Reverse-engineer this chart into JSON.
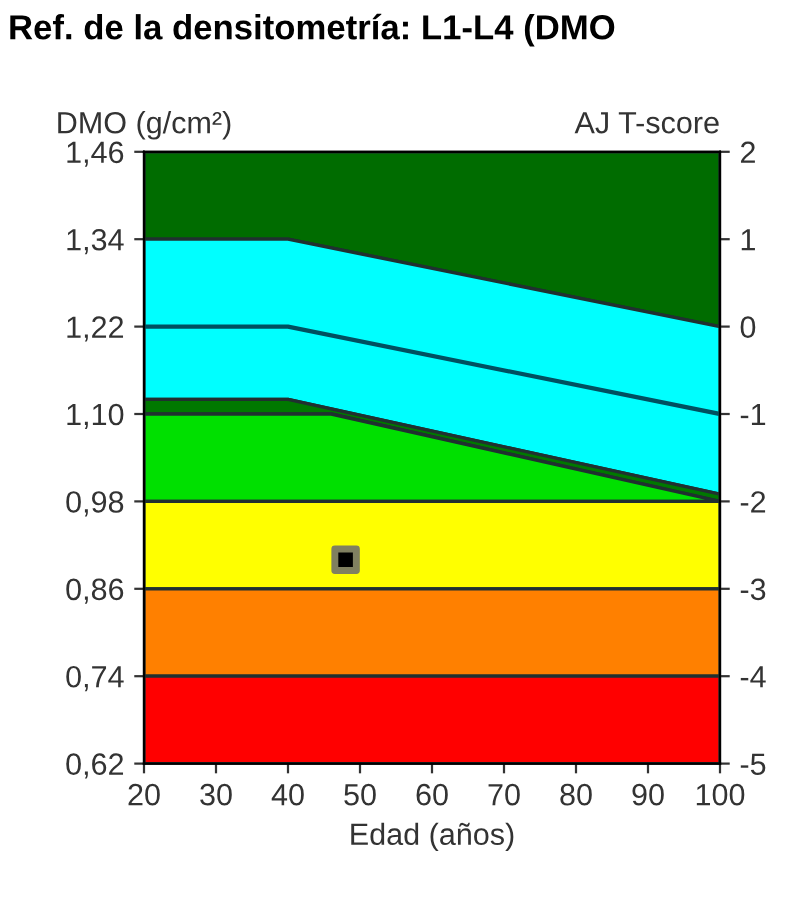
{
  "chart_data": {
    "type": "area",
    "title": "Ref. de la densitometría: L1-L4 (DMO",
    "xlabel": "Edad (años)",
    "ylabel": "DMO (g/cm²)",
    "y2label": "AJ T-score",
    "xlim": [
      20,
      100
    ],
    "xticks": [
      20,
      30,
      40,
      50,
      60,
      70,
      80,
      90,
      100
    ],
    "ylim": [
      0.62,
      1.46
    ],
    "yticks": [
      {
        "value": 0.62,
        "label": "0,62"
      },
      {
        "value": 0.74,
        "label": "0,74"
      },
      {
        "value": 0.86,
        "label": "0,86"
      },
      {
        "value": 0.98,
        "label": "0,98"
      },
      {
        "value": 1.1,
        "label": "1,10"
      },
      {
        "value": 1.22,
        "label": "1,22"
      },
      {
        "value": 1.34,
        "label": "1,34"
      },
      {
        "value": 1.46,
        "label": "1,46"
      }
    ],
    "y2lim": [
      -5,
      2
    ],
    "y2ticks": [
      -5,
      -4,
      -3,
      -2,
      -1,
      0,
      1,
      2
    ],
    "series": [
      {
        "color": "#006c00",
        "x": [
          20,
          40,
          100
        ],
        "values": [
          1.46,
          1.46,
          1.46
        ]
      },
      {
        "color": "#00ffff",
        "x": [
          20,
          40,
          100
        ],
        "values": [
          1.34,
          1.34,
          1.22
        ]
      },
      {
        "color": "#007800",
        "x": [
          20,
          40,
          100
        ],
        "values": [
          1.12,
          1.12,
          0.99
        ]
      },
      {
        "color": "#00e000",
        "x": [
          20,
          46,
          100
        ],
        "values": [
          1.1,
          1.1,
          0.98
        ]
      },
      {
        "color": "#ffff00",
        "x": [
          20,
          100
        ],
        "values": [
          0.98,
          0.98
        ]
      },
      {
        "color": "#ff8000",
        "x": [
          20,
          100
        ],
        "values": [
          0.86,
          0.86
        ]
      },
      {
        "color": "#ff0000",
        "x": [
          20,
          100
        ],
        "values": [
          0.74,
          0.74
        ]
      },
      {
        "type": "line",
        "color": "#005060",
        "x": [
          20,
          40,
          100
        ],
        "values": [
          1.22,
          1.22,
          1.1
        ]
      },
      {
        "type": "scatter",
        "color": "#000000",
        "marker": "square",
        "x": [
          48
        ],
        "values": [
          0.9
        ]
      }
    ]
  }
}
